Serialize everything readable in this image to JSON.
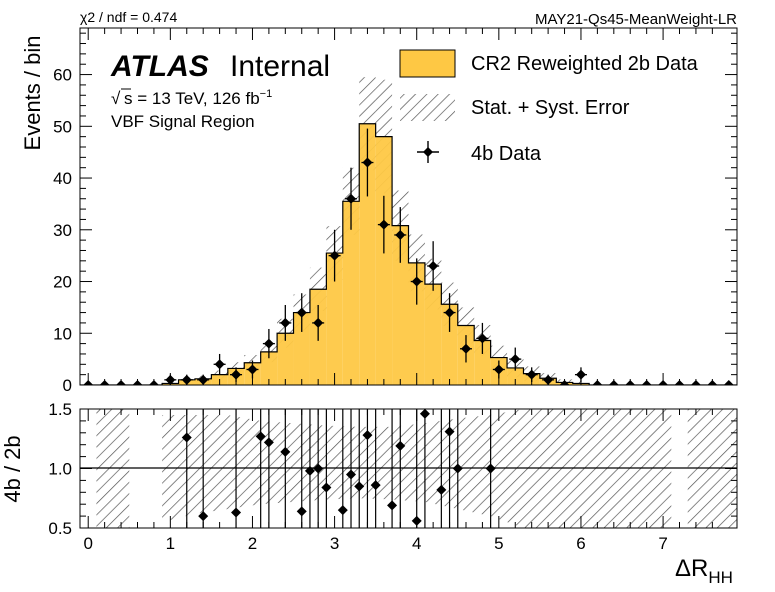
{
  "header": {
    "chi2_text": "χ2 / ndf = 0.474",
    "tag": "MAY21-Qs45-MeanWeight-LR"
  },
  "labels": {
    "atlas": "ATLAS",
    "internal": "Internal",
    "energy_prefix": "s = 13 TeV, 126 fb",
    "energy_exp": "−1",
    "region": "VBF Signal Region",
    "top_ylabel": "Events / bin",
    "bottom_ylabel": "4b / 2b",
    "xlabel_main": "ΔR",
    "xlabel_sub": "HH"
  },
  "legend": {
    "bkg": "CR2 Reweighted 2b Data",
    "err": "Stat. + Syst. Error",
    "data": "4b Data"
  },
  "colors": {
    "bkg_fill": "#fec844",
    "line": "#000000",
    "hatch": "#555555"
  },
  "chart_data": [
    {
      "type": "bar",
      "panel": "main",
      "title": "",
      "xlabel": "ΔR_HH",
      "ylabel": "Events / bin",
      "xlim": [
        -0.1,
        7.9
      ],
      "ylim": [
        0,
        69
      ],
      "xticks": [
        0,
        1,
        2,
        3,
        4,
        5,
        6,
        7
      ],
      "yticks": [
        0,
        10,
        20,
        30,
        40,
        50,
        60
      ],
      "bin_edges": [
        -0.1,
        0.1,
        0.3,
        0.5,
        0.7,
        0.9,
        1.1,
        1.3,
        1.5,
        1.7,
        1.9,
        2.1,
        2.3,
        2.5,
        2.7,
        2.9,
        3.1,
        3.3,
        3.5,
        3.7,
        3.9,
        4.1,
        4.3,
        4.5,
        4.7,
        4.9,
        5.1,
        5.3,
        5.5,
        5.7,
        5.9,
        6.1,
        6.3,
        6.5,
        6.7,
        6.9,
        7.1,
        7.3,
        7.5,
        7.7,
        7.9
      ],
      "series": [
        {
          "name": "CR2 Reweighted 2b Data",
          "kind": "histogram",
          "values": [
            0,
            0,
            0,
            0,
            0,
            0.3,
            1.0,
            1.2,
            2.0,
            3.2,
            4.3,
            6.4,
            10.0,
            14.0,
            18.5,
            25.5,
            35.5,
            50.5,
            48.0,
            30.8,
            23.6,
            19.5,
            15.6,
            11.5,
            8.6,
            5.3,
            3.3,
            2.2,
            1.3,
            0.5,
            0.3,
            0,
            0,
            0,
            0,
            0,
            0,
            0,
            0,
            0
          ],
          "err_up": [
            0,
            0,
            0,
            0,
            0,
            0.3,
            0.5,
            0.6,
            0.8,
            1.2,
            1.5,
            2.0,
            2.8,
            3.5,
            4.2,
            5.2,
            6.5,
            9.0,
            11.0,
            6.8,
            5.5,
            4.9,
            4.2,
            3.5,
            3.0,
            2.3,
            1.8,
            1.4,
            1.0,
            0.6,
            0.4,
            0,
            0,
            0,
            0,
            0,
            0,
            0,
            0,
            0
          ]
        },
        {
          "name": "4b Data",
          "kind": "points",
          "x": [
            0.0,
            0.2,
            0.4,
            0.6,
            0.8,
            1.0,
            1.2,
            1.4,
            1.6,
            1.8,
            2.0,
            2.2,
            2.4,
            2.6,
            2.8,
            3.0,
            3.2,
            3.4,
            3.6,
            3.8,
            4.0,
            4.2,
            4.4,
            4.6,
            4.8,
            5.0,
            5.2,
            5.4,
            5.6,
            5.8,
            6.0,
            6.2,
            6.4,
            6.6,
            6.8,
            7.0,
            7.2,
            7.4,
            7.6,
            7.8
          ],
          "y": [
            0,
            0,
            0,
            0,
            0,
            1,
            1,
            1,
            4,
            2,
            3,
            8,
            12,
            14,
            12,
            25,
            36,
            43,
            31,
            29,
            20,
            23,
            14,
            7,
            9,
            3,
            5,
            2,
            1,
            0,
            2,
            0,
            0,
            0,
            0,
            0,
            0,
            0,
            0,
            0
          ]
        }
      ]
    },
    {
      "type": "scatter",
      "panel": "ratio",
      "ylabel": "4b / 2b",
      "xlabel": "ΔR_HH",
      "xlim": [
        -0.1,
        7.9
      ],
      "ylim": [
        0.5,
        1.5
      ],
      "yticks": [
        0.5,
        1.0,
        1.5
      ],
      "ytick_labels": [
        "0.5",
        "1.0",
        "1.5"
      ],
      "reference_line": 1.0,
      "points": {
        "x": [
          1.2,
          1.4,
          1.8,
          2.1,
          2.2,
          2.4,
          2.6,
          2.7,
          2.8,
          2.9,
          3.1,
          3.2,
          3.3,
          3.4,
          3.5,
          3.7,
          3.8,
          4.0,
          4.1,
          4.3,
          4.4,
          4.5,
          4.9
        ],
        "y": [
          1.26,
          0.6,
          0.63,
          1.27,
          1.22,
          1.14,
          0.64,
          0.98,
          1.0,
          0.84,
          0.65,
          0.95,
          0.85,
          1.28,
          0.86,
          0.69,
          1.19,
          0.56,
          1.46,
          0.82,
          1.31,
          1.0,
          1.0
        ]
      },
      "band": {
        "x": [
          0.1,
          0.5,
          0.9,
          1.3,
          1.7,
          2.1,
          2.5,
          2.9,
          3.3,
          3.7,
          4.1,
          4.5,
          4.9,
          5.3,
          7.3,
          7.9
        ],
        "upper": [
          1.5,
          1.5,
          1.45,
          1.45,
          1.45,
          1.4,
          1.38,
          1.36,
          1.35,
          1.35,
          1.38,
          1.42,
          1.45,
          1.5,
          1.5,
          1.5
        ],
        "lower": [
          0.5,
          0.5,
          0.55,
          0.62,
          0.66,
          0.7,
          0.72,
          0.74,
          0.75,
          0.74,
          0.72,
          0.66,
          0.6,
          0.5,
          0.5,
          0.5
        ]
      }
    }
  ]
}
